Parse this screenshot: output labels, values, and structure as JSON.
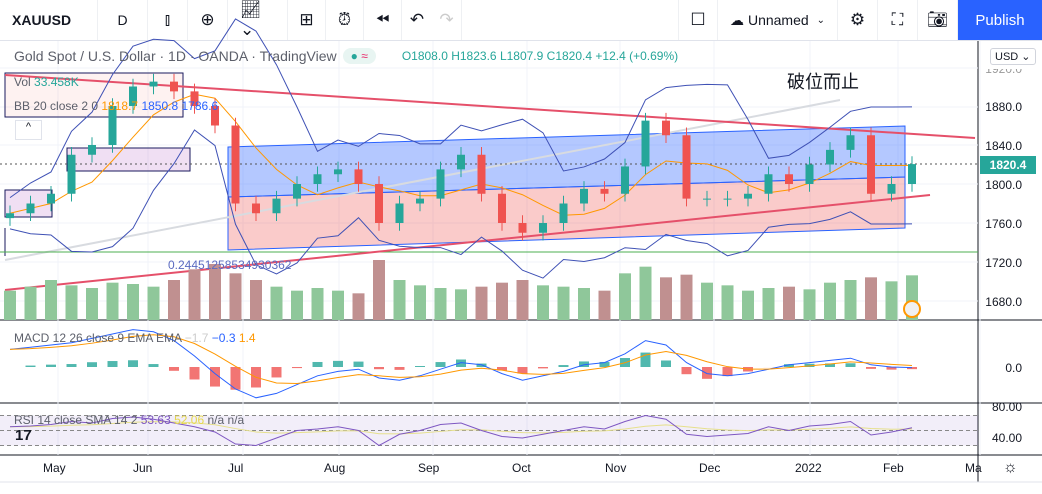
{
  "toolbar": {
    "symbol": "XAUUSD",
    "interval": "D",
    "layout_name": "Unnamed",
    "publish": "Publish"
  },
  "legend": {
    "title": "Gold Spot / U.S. Dollar · 1D · OANDA · TradingView",
    "open": "O1808.0",
    "high": "H1823.6",
    "low": "L1807.9",
    "close": "C1820.4",
    "change": "+12.4 (+0.69%)",
    "status_symbol": "≈"
  },
  "indicators": {
    "vol": {
      "label": "Vol",
      "value": "33.458K"
    },
    "bb": {
      "label": "BB 20 close 2 0",
      "basis": "1818.7",
      "upper": "1850.8",
      "lower": "1786.6"
    },
    "macd": {
      "label": "MACD 12 26 close 9 EMA EMA",
      "hist": "−1.7",
      "macd": "−0.3",
      "signal": "1.4"
    },
    "rsi": {
      "label": "RSI 14 close SMA 14 2",
      "rsi": "53.63",
      "sma": "52.06",
      "extra": "n/a n/a"
    }
  },
  "annotations": {
    "chinese_text": "破位而止",
    "fib_value": "0.24451258534930362"
  },
  "price_axis": {
    "currency": "USD",
    "ticks": [
      "1920.0",
      "1880.0",
      "1840.0",
      "1800.0",
      "1760.0",
      "1720.0",
      "1680.0"
    ],
    "last_price": "1820.4"
  },
  "macd_axis": {
    "ticks": [
      "0.0"
    ]
  },
  "rsi_axis": {
    "ticks": [
      "80.00",
      "40.00"
    ]
  },
  "time_axis": [
    "May",
    "Jun",
    "Jul",
    "Aug",
    "Sep",
    "Oct",
    "Nov",
    "Dec",
    "2022",
    "Feb",
    "Ma"
  ],
  "colors": {
    "up": "#26a69a",
    "down": "#ef5350",
    "accent": "#2962ff"
  },
  "chart_data": {
    "type": "candlestick",
    "title": "Gold Spot / U.S. Dollar 1D",
    "y_range": [
      1660,
      1930
    ],
    "closes": [
      1770,
      1780,
      1790,
      1830,
      1840,
      1880,
      1900,
      1905,
      1895,
      1880,
      1860,
      1780,
      1770,
      1785,
      1800,
      1810,
      1815,
      1800,
      1760,
      1780,
      1785,
      1815,
      1830,
      1790,
      1760,
      1750,
      1760,
      1780,
      1795,
      1790,
      1818,
      1865,
      1850,
      1785,
      1785,
      1785,
      1790,
      1810,
      1800,
      1820,
      1835,
      1850,
      1790,
      1800,
      1820.4
    ],
    "volume_k": [
      22,
      25,
      30,
      26,
      24,
      28,
      27,
      25,
      30,
      38,
      42,
      35,
      30,
      25,
      22,
      24,
      22,
      20,
      45,
      30,
      26,
      24,
      23,
      25,
      28,
      30,
      26,
      25,
      24,
      22,
      35,
      40,
      32,
      34,
      28,
      26,
      22,
      24,
      25,
      23,
      28,
      30,
      32,
      29,
      33.5
    ],
    "macd": [
      8,
      9,
      10,
      11,
      13,
      15,
      17,
      16,
      12,
      5,
      -3,
      -10,
      -14,
      -12,
      -8,
      -4,
      -2,
      -1,
      -5,
      -6,
      -4,
      -1,
      2,
      1,
      -3,
      -6,
      -4,
      -2,
      1,
      2,
      6,
      12,
      10,
      2,
      -3,
      -4,
      -3,
      -1,
      1,
      2,
      3,
      4,
      1,
      0,
      -0.3
    ],
    "rsi": [
      55,
      56,
      58,
      62,
      60,
      66,
      68,
      65,
      60,
      55,
      48,
      32,
      30,
      40,
      50,
      52,
      55,
      50,
      30,
      45,
      50,
      58,
      60,
      50,
      42,
      40,
      45,
      50,
      55,
      52,
      62,
      70,
      65,
      45,
      42,
      44,
      46,
      55,
      50,
      56,
      58,
      62,
      44,
      48,
      53.6
    ]
  }
}
